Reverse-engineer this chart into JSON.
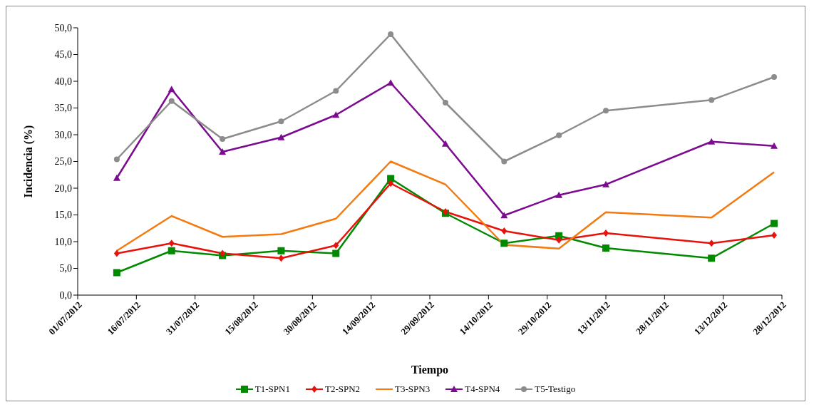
{
  "chart_data": {
    "type": "line",
    "xlabel": "Tiempo",
    "ylabel": "Incidencia (%)",
    "x": [
      "2012-07-11",
      "2012-07-25",
      "2012-08-07",
      "2012-08-22",
      "2012-09-05",
      "2012-09-19",
      "2012-10-03",
      "2012-10-18",
      "2012-11-01",
      "2012-11-13",
      "2012-12-10",
      "2012-12-26"
    ],
    "series": [
      {
        "name": "T1-SPN1",
        "color": "#008a00",
        "marker": "square",
        "values": [
          4.2,
          8.3,
          7.4,
          8.3,
          7.8,
          21.8,
          15.3,
          9.7,
          11.1,
          8.8,
          6.9,
          13.4
        ]
      },
      {
        "name": "T2-SPN2",
        "color": "#e8120c",
        "marker": "diamond",
        "values": [
          7.8,
          9.7,
          7.8,
          6.9,
          9.3,
          20.9,
          15.6,
          12.0,
          10.3,
          11.6,
          9.7,
          11.2
        ]
      },
      {
        "name": "T3-SPN3",
        "color": "#f47a10",
        "marker": "none",
        "values": [
          8.3,
          14.8,
          10.9,
          11.4,
          14.3,
          25.0,
          20.7,
          9.4,
          8.7,
          15.5,
          14.5,
          23.0
        ]
      },
      {
        "name": "T4-SPN4",
        "color": "#7b0b8f",
        "marker": "triangle",
        "values": [
          21.9,
          38.5,
          26.8,
          29.5,
          33.7,
          39.7,
          28.3,
          14.9,
          18.7,
          20.7,
          28.7,
          27.9
        ]
      },
      {
        "name": "T5-Testigo",
        "color": "#8c8c8c",
        "marker": "circle",
        "values": [
          25.4,
          36.3,
          29.2,
          32.5,
          38.2,
          48.8,
          36.0,
          25.0,
          29.9,
          34.5,
          36.5,
          40.8
        ]
      }
    ],
    "xlim": [
      "2012-07-01",
      "2012-12-28"
    ],
    "xticks": [
      {
        "value": "2012-07-01",
        "label": "01/07/2012"
      },
      {
        "value": "2012-07-16",
        "label": "16/07/2012"
      },
      {
        "value": "2012-07-31",
        "label": "31/07/2012"
      },
      {
        "value": "2012-08-15",
        "label": "15/08/2012"
      },
      {
        "value": "2012-08-30",
        "label": "30/08/2012"
      },
      {
        "value": "2012-09-14",
        "label": "14/09/2012"
      },
      {
        "value": "2012-09-29",
        "label": "29/09/2012"
      },
      {
        "value": "2012-10-14",
        "label": "14/10/2012"
      },
      {
        "value": "2012-10-29",
        "label": "29/10/2012"
      },
      {
        "value": "2012-11-13",
        "label": "13/11/2012"
      },
      {
        "value": "2012-11-28",
        "label": "28/11/2012"
      },
      {
        "value": "2012-12-13",
        "label": "13/12/2012"
      },
      {
        "value": "2012-12-28",
        "label": "28/12/2012"
      }
    ],
    "ylim": [
      0,
      50
    ],
    "yticks": [
      {
        "value": 0,
        "label": "0,0"
      },
      {
        "value": 5,
        "label": "5,0"
      },
      {
        "value": 10,
        "label": "10,0"
      },
      {
        "value": 15,
        "label": "15,0"
      },
      {
        "value": 20,
        "label": "20,0"
      },
      {
        "value": 25,
        "label": "25,0"
      },
      {
        "value": 30,
        "label": "30,0"
      },
      {
        "value": 35,
        "label": "35,0"
      },
      {
        "value": 40,
        "label": "40,0"
      },
      {
        "value": 45,
        "label": "45,0"
      },
      {
        "value": 50,
        "label": "50,0"
      }
    ],
    "grid": false,
    "legend": "bottom",
    "line_style": "solid"
  }
}
